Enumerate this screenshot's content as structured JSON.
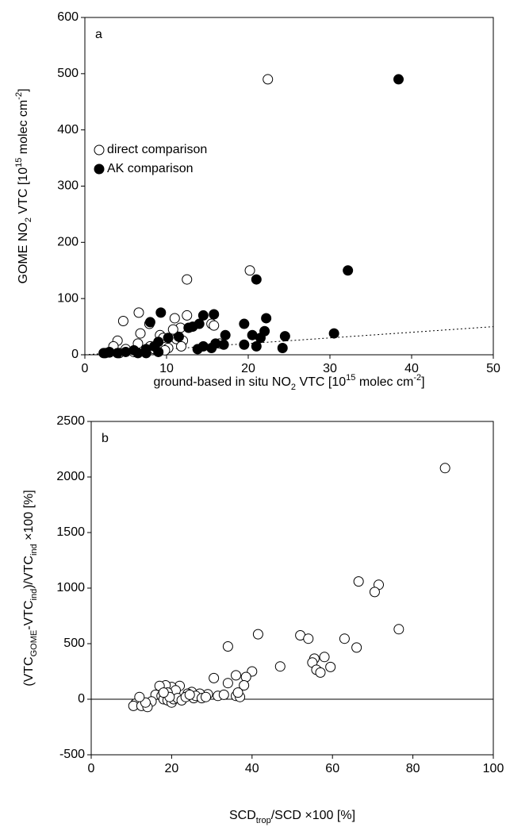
{
  "chart_data": [
    {
      "type": "scatter",
      "panel_label": "a",
      "xlabel": [
        "ground-based in situ NO",
        {
          "sub": "2"
        },
        " VTC [10",
        {
          "sup": "15"
        },
        " molec cm",
        {
          "sup": "-2"
        },
        "]"
      ],
      "ylabel": [
        "GOME NO",
        {
          "sub": "2"
        },
        " VTC [10",
        {
          "sup": "15"
        },
        " molec cm",
        {
          "sup": "-2"
        },
        "]"
      ],
      "xlim": [
        0,
        50
      ],
      "ylim": [
        0,
        600
      ],
      "xticks": [
        0,
        10,
        20,
        30,
        40,
        50
      ],
      "yticks": [
        0,
        100,
        200,
        300,
        400,
        500,
        600
      ],
      "reference_line": {
        "x": [
          0,
          50
        ],
        "y": [
          0,
          50
        ]
      },
      "series": [
        {
          "name": "direct comparison",
          "color": "#000000",
          "marker": "open",
          "x": [
            22.4,
            12.5,
            20.2,
            6.6,
            4.7,
            11,
            12.5,
            11.7,
            10.8,
            6.8,
            7.9,
            15.5,
            15.8,
            9.2,
            9.6,
            11.2,
            12,
            10.2,
            8,
            4,
            3.5,
            5,
            6,
            3,
            2.5,
            4.2,
            7,
            8.5,
            9.8,
            11.8,
            16.5,
            6.5
          ],
          "values": [
            490,
            134,
            150,
            75,
            60,
            65,
            70,
            48,
            45,
            38,
            55,
            55,
            52,
            35,
            30,
            28,
            25,
            12,
            15,
            25,
            15,
            10,
            5,
            5,
            3,
            3,
            8,
            10,
            8,
            15,
            20,
            20
          ]
        },
        {
          "name": "AK comparison",
          "color": "#000000",
          "marker": "filled",
          "x": [
            38.4,
            32.2,
            21,
            9.3,
            15.8,
            14.5,
            22.2,
            8,
            14,
            13.2,
            12.7,
            19.5,
            22,
            20.5,
            30.5,
            17.2,
            24.5,
            11.5,
            10.2,
            21.5,
            9,
            16,
            17,
            14.5,
            19.5,
            21,
            24.2,
            13.8,
            15.5,
            8.5,
            7.5,
            6,
            5,
            3,
            2.3,
            4,
            6.5,
            7.5,
            9
          ],
          "values": [
            490,
            150,
            134,
            75,
            72,
            70,
            65,
            58,
            55,
            50,
            48,
            55,
            42,
            35,
            38,
            35,
            33,
            32,
            30,
            30,
            23,
            20,
            18,
            15,
            18,
            15,
            12,
            10,
            12,
            15,
            10,
            8,
            5,
            4,
            3,
            3,
            3,
            3,
            5
          ]
        }
      ]
    },
    {
      "type": "scatter",
      "panel_label": "b",
      "xlabel": [
        "SCD",
        {
          "sub": "trop"
        },
        "/SCD ×100 [%]"
      ],
      "ylabel": [
        "(VTC",
        {
          "sub": "GOME"
        },
        "-VTC",
        {
          "sub": "ind"
        },
        ")/VTC",
        {
          "sub": "ind"
        },
        " ×100 [%]"
      ],
      "xlim": [
        0,
        100
      ],
      "ylim": [
        -500,
        2500
      ],
      "xticks": [
        0,
        20,
        40,
        60,
        80,
        100
      ],
      "yticks": [
        -500,
        0,
        500,
        1000,
        1500,
        2000,
        2500
      ],
      "hline": 0,
      "series": [
        {
          "color": "#000000",
          "marker": "open",
          "x": [
            88,
            66.5,
            71.5,
            70.5,
            76.5,
            41.5,
            52,
            54,
            63,
            34,
            66,
            58,
            55.5,
            55,
            56,
            59.5,
            57,
            47,
            40,
            36,
            38.5,
            30.5,
            34,
            38,
            36,
            37,
            31.5,
            29,
            27,
            25,
            24,
            22,
            20,
            18.5,
            17,
            21,
            19,
            16,
            15,
            13,
            11,
            10.5,
            12.5,
            14,
            13.5,
            12,
            17.5,
            18,
            19,
            20,
            20.5,
            21.5,
            22.5,
            23.5,
            25.5,
            26,
            27.5,
            28.5,
            33,
            36.5,
            24.5,
            19.5,
            18
          ],
          "values": [
            2080,
            1060,
            1030,
            965,
            630,
            585,
            575,
            545,
            545,
            475,
            465,
            380,
            365,
            330,
            265,
            290,
            240,
            295,
            250,
            215,
            200,
            190,
            145,
            125,
            30,
            20,
            30,
            45,
            50,
            65,
            50,
            120,
            110,
            125,
            120,
            80,
            60,
            40,
            -20,
            -50,
            -40,
            -60,
            -60,
            -70,
            -30,
            20,
            30,
            0,
            -10,
            -30,
            0,
            10,
            -10,
            20,
            10,
            30,
            10,
            20,
            40,
            60,
            40,
            20,
            60
          ]
        }
      ]
    }
  ]
}
